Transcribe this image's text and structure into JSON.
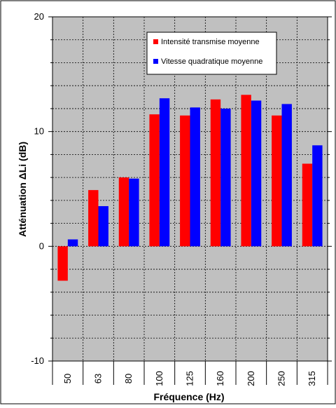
{
  "chart_data": {
    "type": "bar",
    "categories": [
      "50",
      "63",
      "80",
      "100",
      "125",
      "160",
      "200",
      "250",
      "315"
    ],
    "series": [
      {
        "name": "Intensité transmise moyenne",
        "color": "#ff0000",
        "values": [
          -3.0,
          4.9,
          6.0,
          11.5,
          11.4,
          12.8,
          13.2,
          11.4,
          7.2
        ]
      },
      {
        "name": "Vitesse quadratique moyenne",
        "color": "#0000ff",
        "values": [
          0.6,
          3.5,
          5.9,
          12.9,
          12.1,
          12.0,
          12.7,
          12.4,
          8.8
        ]
      }
    ],
    "title": "",
    "xlabel": "Fréquence (Hz)",
    "ylabel": "Atténuation ΔLi (dB)",
    "ylim": [
      -10,
      20
    ],
    "yticks": [
      "-10",
      "0",
      "10",
      "20"
    ],
    "grid": true,
    "legend_position": "top-right",
    "plot_background": "#c0c0c0"
  }
}
